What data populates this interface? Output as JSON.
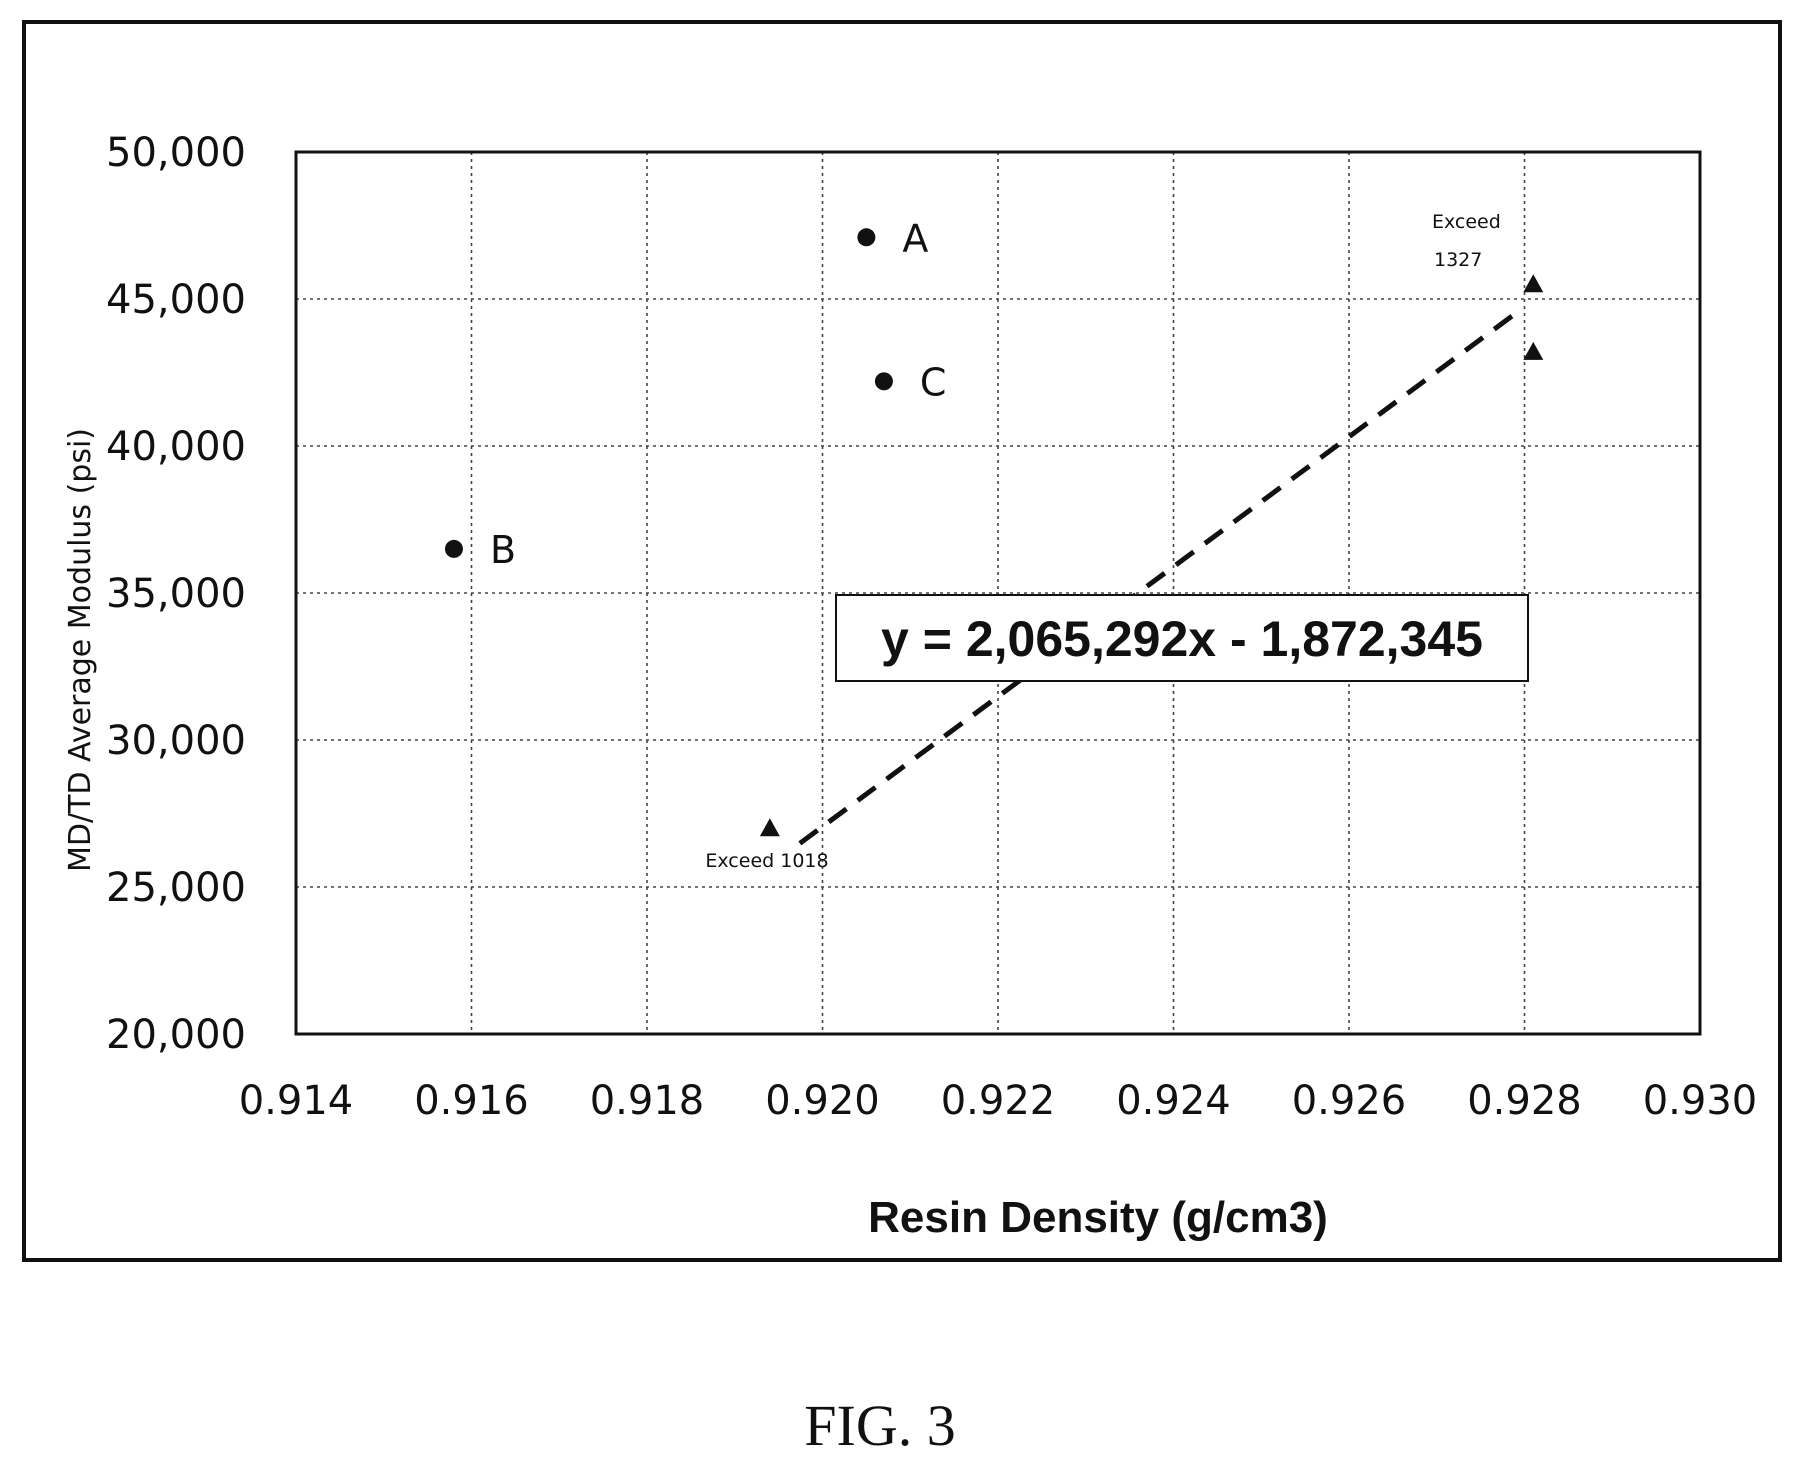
{
  "figure_caption": "FIG. 3",
  "chart_data": {
    "type": "scatter",
    "title": "",
    "xlabel": "Resin Density (g/cm3)",
    "ylabel": "MD/TD Average Modulus (psi)",
    "xlim": [
      0.914,
      0.93
    ],
    "ylim": [
      20000,
      50000
    ],
    "x_ticks": [
      0.914,
      0.916,
      0.918,
      0.92,
      0.922,
      0.924,
      0.926,
      0.928,
      0.93
    ],
    "x_tick_labels": [
      "0.914",
      "0.916",
      "0.918",
      "0.920",
      "0.922",
      "0.924",
      "0.926",
      "0.928",
      "0.930"
    ],
    "y_ticks": [
      20000,
      25000,
      30000,
      35000,
      40000,
      45000,
      50000
    ],
    "y_tick_labels": [
      "20,000",
      "25,000",
      "30,000",
      "35,000",
      "40,000",
      "45,000",
      "50,000"
    ],
    "grid": true,
    "series": [
      {
        "marker": "circle",
        "points": [
          {
            "x": 0.9205,
            "y": 47100,
            "label": "A"
          },
          {
            "x": 0.9158,
            "y": 36500,
            "label": "B"
          },
          {
            "x": 0.9207,
            "y": 42200,
            "label": "C"
          }
        ]
      },
      {
        "marker": "triangle",
        "points": [
          {
            "x": 0.9194,
            "y": 27000
          },
          {
            "x": 0.9281,
            "y": 45500
          },
          {
            "x": 0.9281,
            "y": 43200
          }
        ]
      }
    ],
    "trendline": {
      "style": "dashed",
      "x": [
        0.9194,
        0.9281
      ],
      "equation": "y = 2,065,292x - 1,872,345"
    },
    "annotations": {
      "exceed_1018": "Exceed 1018",
      "exceed_1327_line1": "Exceed",
      "exceed_1327_line2": "1327"
    }
  }
}
